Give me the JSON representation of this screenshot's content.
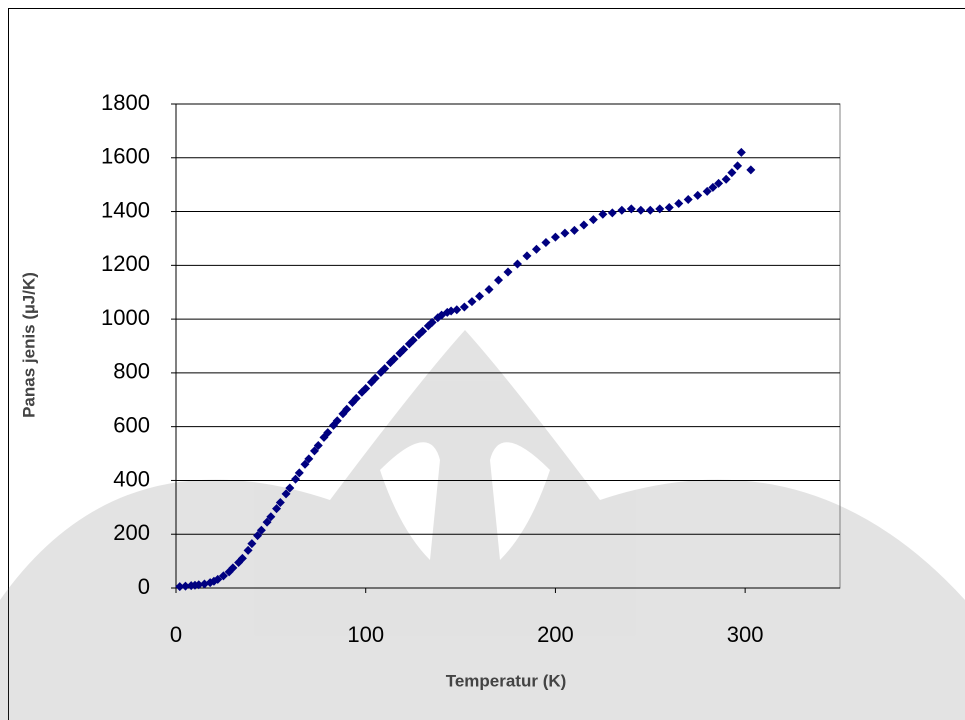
{
  "chart_data": {
    "type": "scatter",
    "x_label": "Temperatur (K)",
    "y_label": "Panas jenis (µJ/K)",
    "xlim": [
      0,
      350
    ],
    "xticks": [
      0,
      100,
      200,
      300
    ],
    "ylim": [
      0,
      1800
    ],
    "yticks": [
      0,
      200,
      400,
      600,
      800,
      1000,
      1200,
      1400,
      1600,
      1800
    ],
    "grid": true,
    "series": [
      {
        "color": "#000080",
        "x": [
          2,
          5,
          8,
          10,
          12,
          15,
          18,
          20,
          22,
          25,
          28,
          30,
          33,
          35,
          38,
          40,
          43,
          45,
          48,
          50,
          53,
          55,
          58,
          60,
          63,
          65,
          68,
          70,
          73,
          75,
          78,
          80,
          83,
          85,
          88,
          90,
          93,
          95,
          98,
          100,
          103,
          105,
          108,
          110,
          113,
          115,
          118,
          120,
          123,
          125,
          128,
          130,
          133,
          135,
          138,
          140,
          143,
          145,
          148,
          152,
          156,
          160,
          165,
          170,
          175,
          180,
          185,
          190,
          195,
          200,
          205,
          210,
          215,
          220,
          225,
          230,
          235,
          240,
          245,
          250,
          255,
          260,
          265,
          270,
          275,
          280,
          283,
          286,
          290,
          293,
          296,
          298,
          303
        ],
        "values": [
          5,
          7,
          9,
          10,
          12,
          15,
          20,
          25,
          32,
          45,
          60,
          75,
          95,
          110,
          140,
          165,
          195,
          215,
          245,
          265,
          295,
          318,
          350,
          372,
          405,
          428,
          460,
          480,
          510,
          530,
          560,
          578,
          605,
          622,
          648,
          665,
          690,
          705,
          728,
          742,
          765,
          780,
          802,
          816,
          838,
          852,
          873,
          887,
          908,
          922,
          942,
          955,
          975,
          988,
          1005,
          1015,
          1025,
          1030,
          1035,
          1045,
          1065,
          1085,
          1110,
          1145,
          1175,
          1205,
          1235,
          1260,
          1285,
          1305,
          1320,
          1330,
          1350,
          1370,
          1390,
          1395,
          1405,
          1410,
          1405,
          1405,
          1410,
          1415,
          1430,
          1445,
          1460,
          1475,
          1490,
          1505,
          1520,
          1545,
          1570,
          1620,
          1555
        ]
      }
    ]
  }
}
